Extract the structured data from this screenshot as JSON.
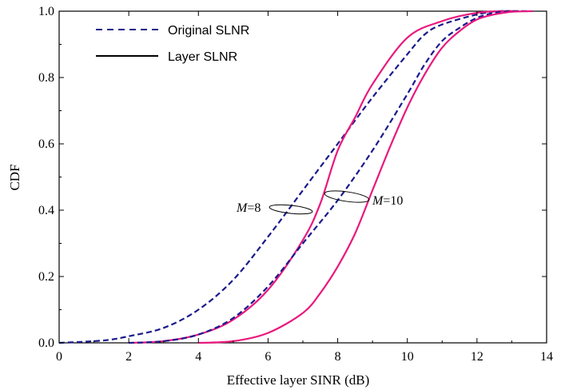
{
  "chart_data": {
    "type": "line",
    "xlabel": "Effective layer SINR (dB)",
    "ylabel": "CDF",
    "xlim": [
      0,
      14
    ],
    "ylim": [
      0,
      1.0
    ],
    "xticks": [
      "0",
      "2",
      "4",
      "6",
      "8",
      "10",
      "12",
      "14"
    ],
    "yticks": [
      "0.0",
      "0.2",
      "0.4",
      "0.6",
      "0.8",
      "1.0"
    ],
    "grid": false,
    "legend": {
      "placement": "top-left",
      "entries": [
        {
          "label": "Original SLNR",
          "style": "dashed",
          "color": "#1a1a8c"
        },
        {
          "label": "Layer SLNR",
          "style": "solid",
          "color": "#000000"
        }
      ]
    },
    "series": [
      {
        "group": "M=8",
        "style": "dashed",
        "color": "#1a1a8c",
        "points": [
          [
            0,
            0
          ],
          [
            1,
            0.005
          ],
          [
            1.5,
            0.01
          ],
          [
            2,
            0.02
          ],
          [
            3,
            0.045
          ],
          [
            4,
            0.1
          ],
          [
            5,
            0.19
          ],
          [
            6,
            0.32
          ],
          [
            7,
            0.46
          ],
          [
            8,
            0.6
          ],
          [
            9,
            0.74
          ],
          [
            10,
            0.87
          ],
          [
            10.5,
            0.93
          ],
          [
            11,
            0.96
          ],
          [
            12,
            0.99
          ],
          [
            12.6,
            1.0
          ],
          [
            13,
            1.0
          ]
        ]
      },
      {
        "group": "M=8",
        "style": "solid",
        "color": "#e8197d",
        "points": [
          [
            2,
            0
          ],
          [
            3,
            0.005
          ],
          [
            4,
            0.025
          ],
          [
            5,
            0.07
          ],
          [
            6,
            0.16
          ],
          [
            7,
            0.31
          ],
          [
            7.5,
            0.42
          ],
          [
            8,
            0.58
          ],
          [
            8.5,
            0.68
          ],
          [
            9,
            0.78
          ],
          [
            10,
            0.92
          ],
          [
            11,
            0.97
          ],
          [
            12,
            0.995
          ],
          [
            12.8,
            1.0
          ],
          [
            13.2,
            1.0
          ]
        ]
      },
      {
        "group": "M=10",
        "style": "dashed",
        "color": "#1a1a8c",
        "points": [
          [
            2,
            0
          ],
          [
            3,
            0.005
          ],
          [
            4,
            0.025
          ],
          [
            5,
            0.075
          ],
          [
            6,
            0.17
          ],
          [
            7,
            0.3
          ],
          [
            8,
            0.43
          ],
          [
            9,
            0.58
          ],
          [
            10,
            0.75
          ],
          [
            10.5,
            0.84
          ],
          [
            11,
            0.91
          ],
          [
            11.5,
            0.95
          ],
          [
            12,
            0.98
          ],
          [
            12.5,
            0.995
          ],
          [
            13,
            1.0
          ],
          [
            13.5,
            1.0
          ]
        ]
      },
      {
        "group": "M=10",
        "style": "solid",
        "color": "#e8197d",
        "points": [
          [
            4,
            0
          ],
          [
            5,
            0.005
          ],
          [
            6,
            0.03
          ],
          [
            7,
            0.09
          ],
          [
            7.5,
            0.15
          ],
          [
            8,
            0.23
          ],
          [
            8.5,
            0.33
          ],
          [
            9,
            0.46
          ],
          [
            9.5,
            0.59
          ],
          [
            10,
            0.71
          ],
          [
            10.5,
            0.81
          ],
          [
            11,
            0.89
          ],
          [
            11.5,
            0.94
          ],
          [
            12,
            0.975
          ],
          [
            12.5,
            0.99
          ],
          [
            13,
            0.998
          ],
          [
            13.6,
            1.0
          ]
        ]
      }
    ],
    "annotations": [
      {
        "italic": "M",
        "text": "=8",
        "x": 6.7,
        "y": 0.4
      },
      {
        "italic": "M",
        "text": "=10",
        "x": 8.3,
        "y": 0.44
      }
    ]
  }
}
